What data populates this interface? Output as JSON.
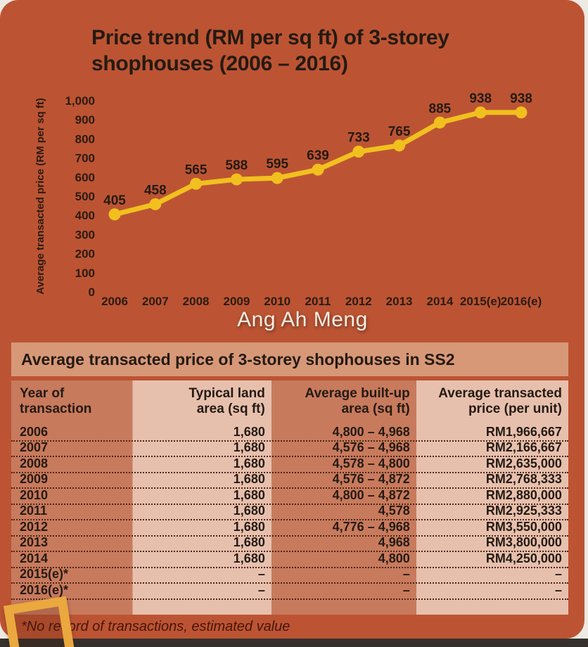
{
  "page": {
    "title_line1": "Price trend (RM per sq ft) of 3-storey",
    "title_line2": "shophouses (2006 – 2016)",
    "watermark": "Ang Ah Meng",
    "footnote": "*No record of transactions, estimated value"
  },
  "colors": {
    "card_bg": "#BC5433",
    "line": "#F1C01F",
    "text_dark": "#241A12",
    "table_title_band": "#D79878",
    "column_dark": "#C87A5D",
    "column_light": "#E7C0AD",
    "footnote_text": "#47150A",
    "bottom_strip": "#35302D",
    "frame_decoration": "#EAA83F",
    "watermark_text": "#F3EDE5"
  },
  "chart_data": {
    "type": "line",
    "title": "Price trend (RM per sq ft) of 3-storey shophouses (2006 – 2016)",
    "categories": [
      "2006",
      "2007",
      "2008",
      "2009",
      "2010",
      "2011",
      "2012",
      "2013",
      "2014",
      "2015(e)",
      "2016(e)"
    ],
    "values": [
      405,
      458,
      565,
      588,
      595,
      639,
      733,
      765,
      885,
      938,
      938
    ],
    "xlabel": "",
    "ylabel": "Average transacted price (RM per sq ft)",
    "ylim": [
      0,
      1000
    ],
    "ytick_step": 100,
    "grid": false,
    "legend": "none",
    "line_color": "#F1C01F",
    "marker_color": "#F1C01F",
    "data_labels": true
  },
  "table": {
    "title": "Average transacted price of 3-storey shophouses in SS2",
    "headers": [
      {
        "line1": "Year of",
        "line2": "transaction"
      },
      {
        "line1": "Typical land",
        "line2": "area (sq ft)"
      },
      {
        "line1": "Average built-up",
        "line2": "area (sq ft)"
      },
      {
        "line1": "Average transacted",
        "line2": "price (per unit)"
      }
    ],
    "rows": [
      [
        "2006",
        "1,680",
        "4,800 – 4,968",
        "RM1,966,667"
      ],
      [
        "2007",
        "1,680",
        "4,576 – 4,968",
        "RM2,166,667"
      ],
      [
        "2008",
        "1,680",
        "4,578 – 4,800",
        "RM2,635,000"
      ],
      [
        "2009",
        "1,680",
        "4,576 – 4,872",
        "RM2,768,333"
      ],
      [
        "2010",
        "1,680",
        "4,800 – 4,872",
        "RM2,880,000"
      ],
      [
        "2011",
        "1,680",
        "4,578",
        "RM2,925,333"
      ],
      [
        "2012",
        "1,680",
        "4,776 – 4,968",
        "RM3,550,000"
      ],
      [
        "2013",
        "1,680",
        "4,968",
        "RM3,800,000"
      ],
      [
        "2014",
        "1,680",
        "4,800",
        "RM4,250,000"
      ],
      [
        "2015(e)*",
        "–",
        "–",
        "–"
      ],
      [
        "2016(e)*",
        "–",
        "–",
        "–"
      ]
    ]
  }
}
